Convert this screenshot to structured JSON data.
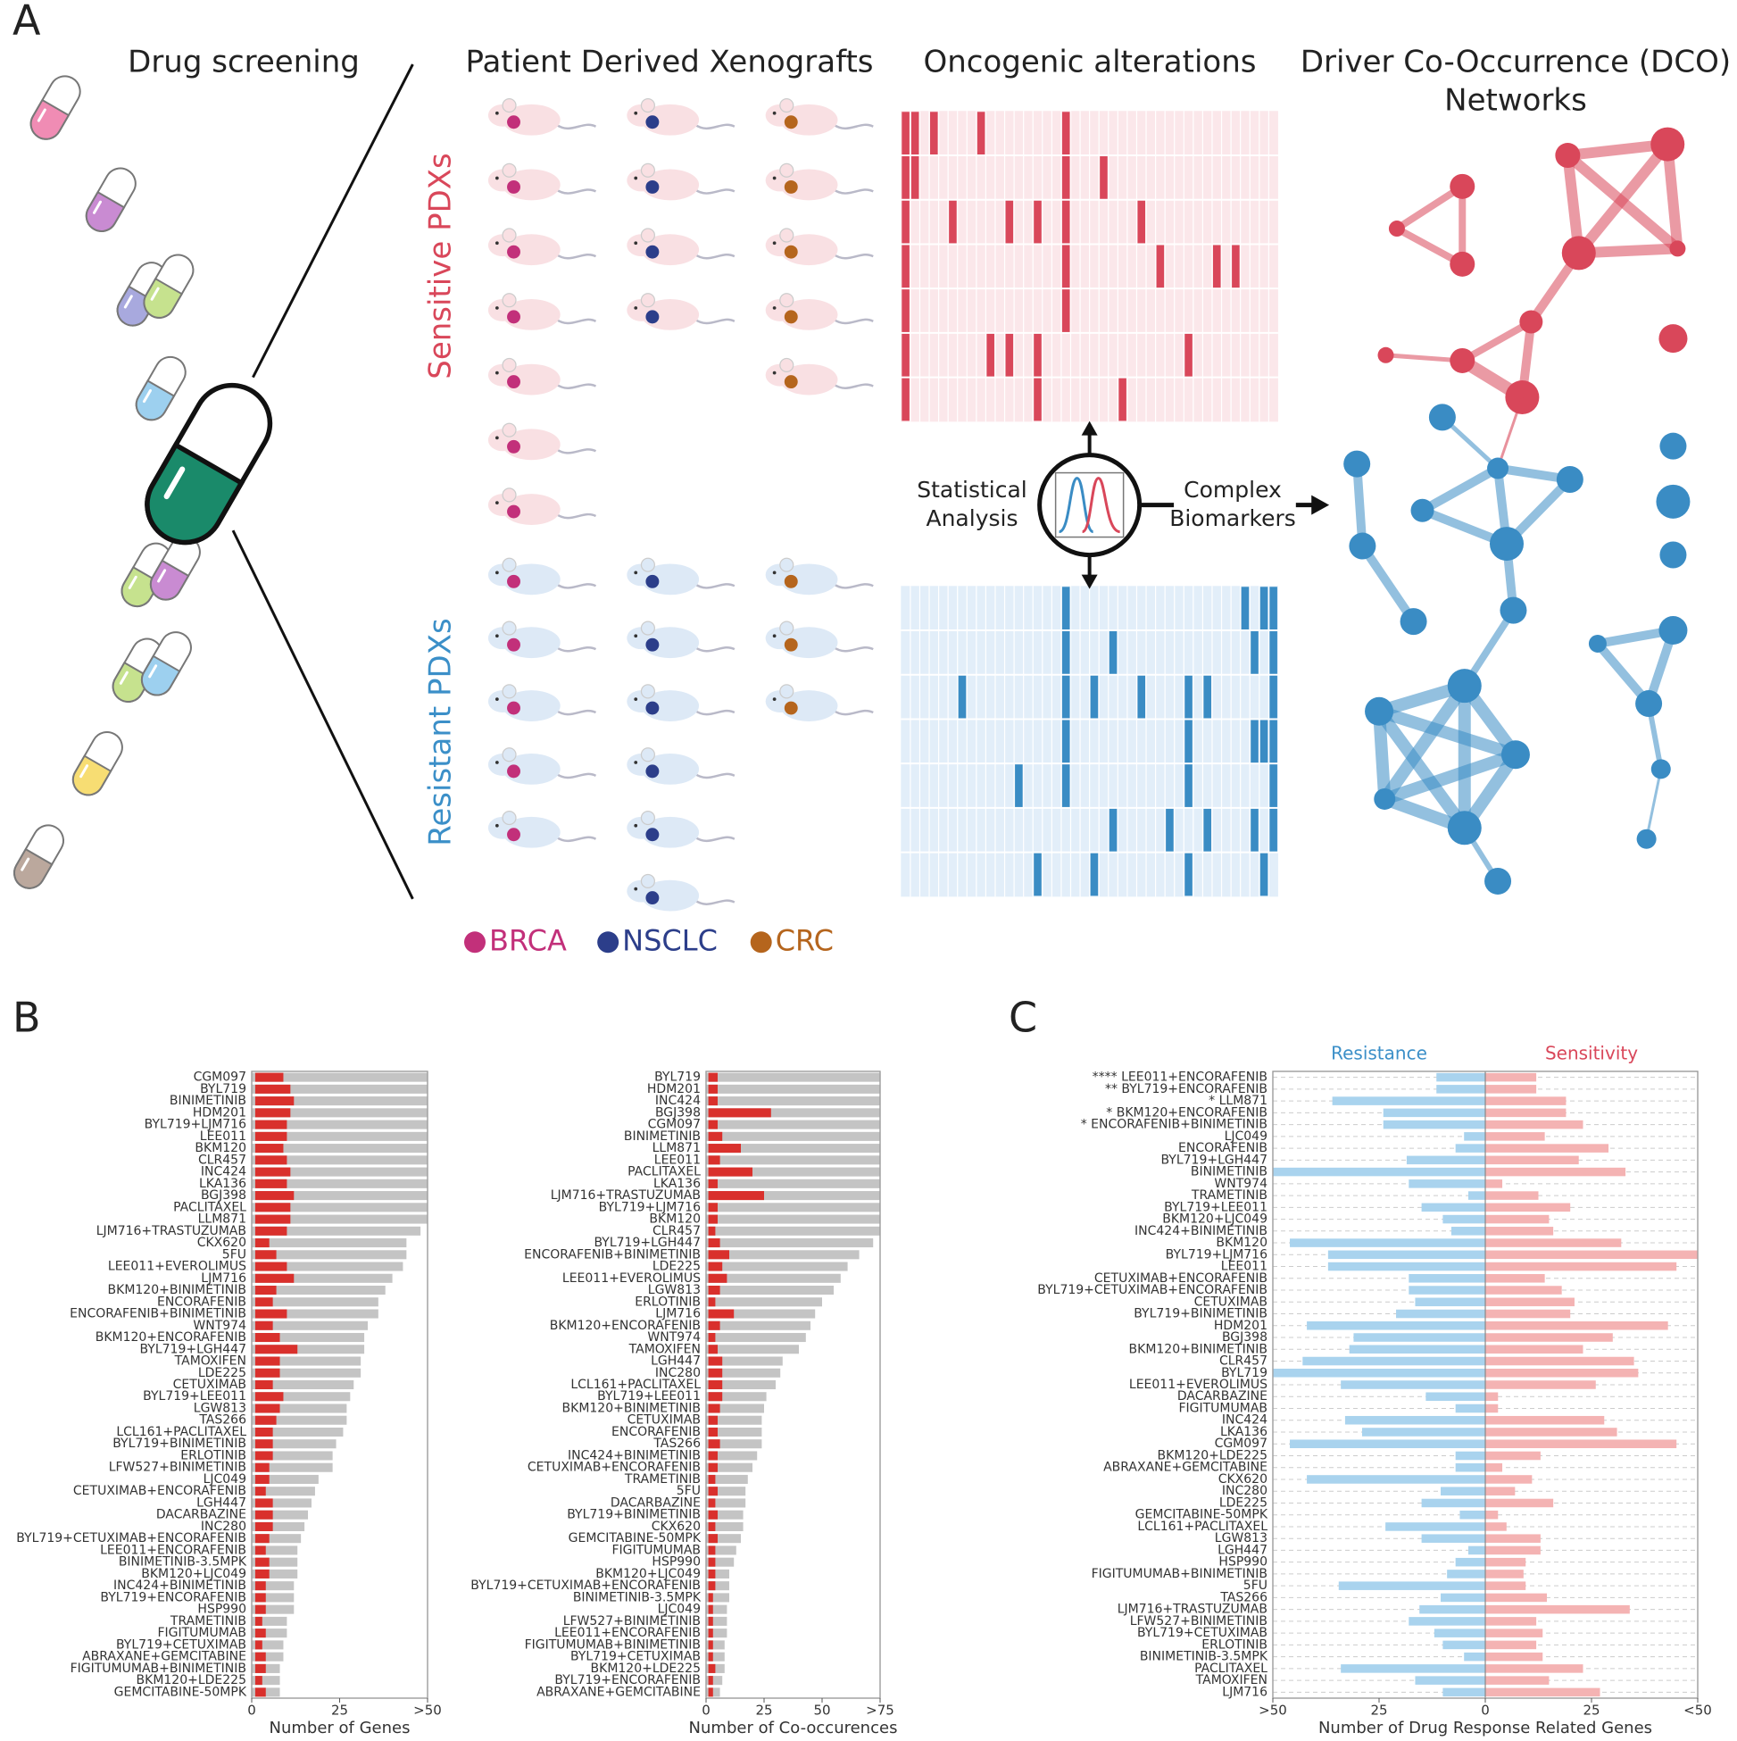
{
  "panel_a": {
    "label": "A",
    "drug_title": "Drug screening",
    "pdx_title": "Patient Derived Xenografts",
    "alt_title": "Oncogenic alterations",
    "dco_title": [
      "Driver Co-Occurrence (DCO)",
      "Networks"
    ],
    "sensitive_label": "Sensitive PDXs",
    "resistant_label": "Resistant PDXs",
    "analysis_label": [
      "Statistical",
      "Analysis"
    ],
    "biomarker_label": [
      "Complex",
      "Biomarkers"
    ],
    "groups": [
      {
        "label": "BRCA",
        "color": "#c2307a",
        "sensitive": 7,
        "resistant": 5
      },
      {
        "label": "NSCLC",
        "color": "#2c3e8a",
        "sensitive": 4,
        "resistant": 6
      },
      {
        "label": "CRC",
        "color": "#b5651d",
        "sensitive": 5,
        "resistant": 3
      }
    ],
    "sensitive_alterations": [
      [
        0,
        1,
        3,
        8,
        17
      ],
      [
        0,
        1,
        17,
        21
      ],
      [
        0,
        5,
        11,
        14,
        17,
        25
      ],
      [
        0,
        17,
        27,
        33,
        35
      ],
      [
        0,
        17
      ],
      [
        0,
        9,
        11,
        14,
        30
      ],
      [
        0,
        14,
        23
      ]
    ],
    "resistant_alterations": [
      [
        17,
        36,
        38,
        39
      ],
      [
        17,
        22,
        37,
        39
      ],
      [
        6,
        17,
        20,
        25,
        30,
        32,
        39
      ],
      [
        17,
        30,
        37,
        38,
        39
      ],
      [
        12,
        17,
        30,
        39
      ],
      [
        22,
        28,
        32,
        37,
        39
      ],
      [
        14,
        20,
        30,
        38
      ]
    ]
  },
  "panel_b_label": "B",
  "panel_c_label": "C",
  "chart_data": [
    {
      "type": "box",
      "xlabel": "Number of Genes",
      "xlim": [
        0,
        50
      ],
      "xticks": [
        0,
        25,
        {
          "value": 50,
          "label": ">50"
        }
      ],
      "color": "#c4c4c4",
      "box_color": "#d9302c",
      "categories": [
        "CGM097",
        "BYL719",
        "BINIMETINIB",
        "HDM201",
        "BYL719+LJM716",
        "LEE011",
        "BKM120",
        "CLR457",
        "INC424",
        "LKA136",
        "BGJ398",
        "PACLITAXEL",
        "LLM871",
        "LJM716+TRASTUZUMAB",
        "CKX620",
        "5FU",
        "LEE011+EVEROLIMUS",
        "LJM716",
        "BKM120+BINIMETINIB",
        "ENCORAFENIB",
        "ENCORAFENIB+BINIMETINIB",
        "WNT974",
        "BKM120+ENCORAFENIB",
        "BYL719+LGH447",
        "TAMOXIFEN",
        "LDE225",
        "CETUXIMAB",
        "BYL719+LEE011",
        "LGW813",
        "TAS266",
        "LCL161+PACLITAXEL",
        "BYL719+BINIMETINIB",
        "ERLOTINIB",
        "LFW527+BINIMETINIB",
        "LJC049",
        "CETUXIMAB+ENCORAFENIB",
        "LGH447",
        "DACARBAZINE",
        "INC280",
        "BYL719+CETUXIMAB+ENCORAFENIB",
        "LEE011+ENCORAFENIB",
        "BINIMETINIB-3.5MPK",
        "BKM120+LJC049",
        "INC424+BINIMETINIB",
        "BYL719+ENCORAFENIB",
        "HSP990",
        "TRAMETINIB",
        "FIGITUMUMAB",
        "BYL719+CETUXIMAB",
        "ABRAXANE+GEMCITABINE",
        "FIGITUMUMAB+BINIMETINIB",
        "BKM120+LDE225",
        "GEMCITABINE-50MPK"
      ],
      "values": [
        50,
        50,
        50,
        50,
        50,
        50,
        50,
        50,
        50,
        50,
        50,
        50,
        50,
        48,
        44,
        44,
        43,
        40,
        38,
        36,
        36,
        33,
        32,
        32,
        31,
        31,
        29,
        28,
        27,
        27,
        26,
        24,
        23,
        23,
        19,
        18,
        17,
        16,
        15,
        14,
        13,
        13,
        13,
        12,
        12,
        12,
        10,
        10,
        9,
        9,
        8,
        8,
        8
      ],
      "box_low": [
        1,
        1,
        1,
        1,
        1,
        1,
        1,
        1,
        1,
        1,
        1,
        1,
        1,
        1,
        1,
        1,
        1,
        1,
        1,
        1,
        1,
        1,
        1,
        1,
        1,
        1,
        1,
        1,
        1,
        1,
        1,
        1,
        1,
        1,
        1,
        1,
        1,
        1,
        1,
        1,
        1,
        1,
        1,
        1,
        1,
        1,
        1,
        1,
        1,
        1,
        1,
        1,
        1
      ],
      "box_high": [
        9,
        11,
        12,
        11,
        10,
        10,
        9,
        10,
        11,
        10,
        12,
        11,
        11,
        10,
        5,
        7,
        10,
        12,
        7,
        6,
        10,
        6,
        8,
        13,
        8,
        8,
        6,
        9,
        8,
        7,
        6,
        6,
        6,
        5,
        5,
        4,
        6,
        6,
        6,
        5,
        4,
        5,
        5,
        4,
        4,
        4,
        3,
        4,
        3,
        4,
        4,
        3,
        4
      ]
    },
    {
      "type": "box",
      "xlabel": "Number of Co-occurences",
      "xlim": [
        0,
        75
      ],
      "xticks": [
        0,
        25,
        50,
        {
          "value": 75,
          "label": ">75"
        }
      ],
      "color": "#c4c4c4",
      "box_color": "#d9302c",
      "categories": [
        "BYL719",
        "HDM201",
        "INC424",
        "BGJ398",
        "CGM097",
        "BINIMETINIB",
        "LLM871",
        "LEE011",
        "PACLITAXEL",
        "LKA136",
        "LJM716+TRASTUZUMAB",
        "BYL719+LJM716",
        "BKM120",
        "CLR457",
        "BYL719+LGH447",
        "ENCORAFENIB+BINIMETINIB",
        "LDE225",
        "LEE011+EVEROLIMUS",
        "LGW813",
        "ERLOTINIB",
        "LJM716",
        "BKM120+ENCORAFENIB",
        "WNT974",
        "TAMOXIFEN",
        "LGH447",
        "INC280",
        "LCL161+PACLITAXEL",
        "BYL719+LEE011",
        "BKM120+BINIMETINIB",
        "CETUXIMAB",
        "ENCORAFENIB",
        "TAS266",
        "INC424+BINIMETINIB",
        "CETUXIMAB+ENCORAFENIB",
        "TRAMETINIB",
        "5FU",
        "DACARBAZINE",
        "BYL719+BINIMETINIB",
        "CKX620",
        "GEMCITABINE-50MPK",
        "FIGITUMUMAB",
        "HSP990",
        "BKM120+LJC049",
        "BYL719+CETUXIMAB+ENCORAFENIB",
        "BINIMETINIB-3.5MPK",
        "LJC049",
        "LFW527+BINIMETINIB",
        "LEE011+ENCORAFENIB",
        "FIGITUMUMAB+BINIMETINIB",
        "BYL719+CETUXIMAB",
        "BKM120+LDE225",
        "BYL719+ENCORAFENIB",
        "ABRAXANE+GEMCITABINE"
      ],
      "values": [
        75,
        75,
        75,
        75,
        75,
        75,
        75,
        75,
        75,
        75,
        75,
        75,
        75,
        75,
        72,
        66,
        61,
        58,
        55,
        50,
        47,
        45,
        43,
        40,
        33,
        32,
        30,
        26,
        25,
        24,
        24,
        24,
        22,
        20,
        18,
        17,
        17,
        16,
        16,
        15,
        13,
        12,
        10,
        10,
        10,
        9,
        9,
        9,
        8,
        8,
        8,
        7,
        6
      ],
      "box_low": [
        1,
        1,
        1,
        1,
        1,
        1,
        1,
        1,
        1,
        1,
        1,
        1,
        1,
        1,
        1,
        1,
        1,
        1,
        1,
        1,
        1,
        1,
        1,
        1,
        1,
        1,
        1,
        1,
        1,
        1,
        1,
        1,
        1,
        1,
        1,
        1,
        1,
        1,
        1,
        1,
        1,
        1,
        1,
        1,
        1,
        1,
        1,
        1,
        1,
        1,
        1,
        1,
        1
      ],
      "box_high": [
        5,
        5,
        5,
        28,
        5,
        7,
        15,
        6,
        20,
        5,
        25,
        5,
        5,
        4,
        6,
        10,
        7,
        9,
        6,
        4,
        12,
        6,
        4,
        5,
        7,
        7,
        7,
        7,
        6,
        5,
        5,
        6,
        5,
        5,
        4,
        5,
        4,
        5,
        4,
        5,
        4,
        4,
        4,
        4,
        3,
        3,
        3,
        3,
        3,
        3,
        4,
        3,
        3
      ]
    },
    {
      "type": "diverging",
      "xlabel": "Number of Drug Response Related Genes",
      "xlim": [
        -50,
        50
      ],
      "xticks": [
        {
          "value": -50,
          "label": ">50"
        },
        {
          "value": -25,
          "label": "25"
        },
        0,
        25,
        {
          "value": 50,
          "label": "<50"
        }
      ],
      "categories": [
        "**** LEE011+ENCORAFENIB",
        "** BYL719+ENCORAFENIB",
        "* LLM871",
        "* BKM120+ENCORAFENIB",
        "* ENCORAFENIB+BINIMETINIB",
        "LJC049",
        "ENCORAFENIB",
        "BYL719+LGH447",
        "BINIMETINIB",
        "WNT974",
        "TRAMETINIB",
        "BYL719+LEE011",
        "BKM120+LJC049",
        "INC424+BINIMETINIB",
        "BKM120",
        "BYL719+LJM716",
        "LEE011",
        "CETUXIMAB+ENCORAFENIB",
        "BYL719+CETUXIMAB+ENCORAFENIB",
        "CETUXIMAB",
        "BYL719+BINIMETINIB",
        "HDM201",
        "BGJ398",
        "BKM120+BINIMETINIB",
        "CLR457",
        "BYL719",
        "LEE011+EVEROLIMUS",
        "DACARBAZINE",
        "FIGITUMUMAB",
        "INC424",
        "LKA136",
        "CGM097",
        "BKM120+LDE225",
        "ABRAXANE+GEMCITABINE",
        "CKX620",
        "INC280",
        "LDE225",
        "GEMCITABINE-50MPK",
        "LCL161+PACLITAXEL",
        "LGW813",
        "LGH447",
        "HSP990",
        "FIGITUMUMAB+BINIMETINIB",
        "5FU",
        "TAS266",
        "LJM716+TRASTUZUMAB",
        "LFW527+BINIMETINIB",
        "BYL719+CETUXIMAB",
        "ERLOTINIB",
        "BINIMETINIB-3.5MPK",
        "PACLITAXEL",
        "TAMOXIFEN",
        "LJM716"
      ],
      "series": [
        {
          "name": "Resistance",
          "color": "#a9d3ee",
          "values": [
            -11.5,
            -11.5,
            -36,
            -24,
            -24,
            -5,
            -7,
            -18.5,
            -50,
            -18,
            -4,
            -15,
            -10,
            -8,
            -46,
            -37,
            -37,
            -18,
            -18,
            -16.5,
            -21,
            -42,
            -31,
            -32,
            -43,
            -50,
            -34,
            -14,
            -7,
            -33,
            -29,
            -46,
            -7,
            -7,
            -42,
            -10.5,
            -15,
            -6,
            -23.5,
            -15,
            -4,
            -7,
            -9,
            -34.5,
            -10.5,
            -15.5,
            -18,
            -12,
            -10,
            -5,
            -34,
            -16.5,
            -10
          ]
        },
        {
          "name": "Sensitivity",
          "color": "#f4b3b3",
          "values": [
            12,
            12,
            19,
            19,
            23,
            14,
            29,
            22,
            33,
            4,
            12.5,
            20,
            15,
            16,
            32,
            50,
            45,
            14,
            18,
            21,
            20,
            43,
            30,
            23,
            35,
            36,
            26,
            3,
            3,
            28,
            31,
            45,
            13,
            4,
            11,
            7,
            16,
            3,
            5,
            13,
            13,
            9.5,
            9,
            9.5,
            14.5,
            34,
            12,
            13.5,
            12,
            13.5,
            23,
            15,
            27
          ]
        }
      ]
    }
  ]
}
